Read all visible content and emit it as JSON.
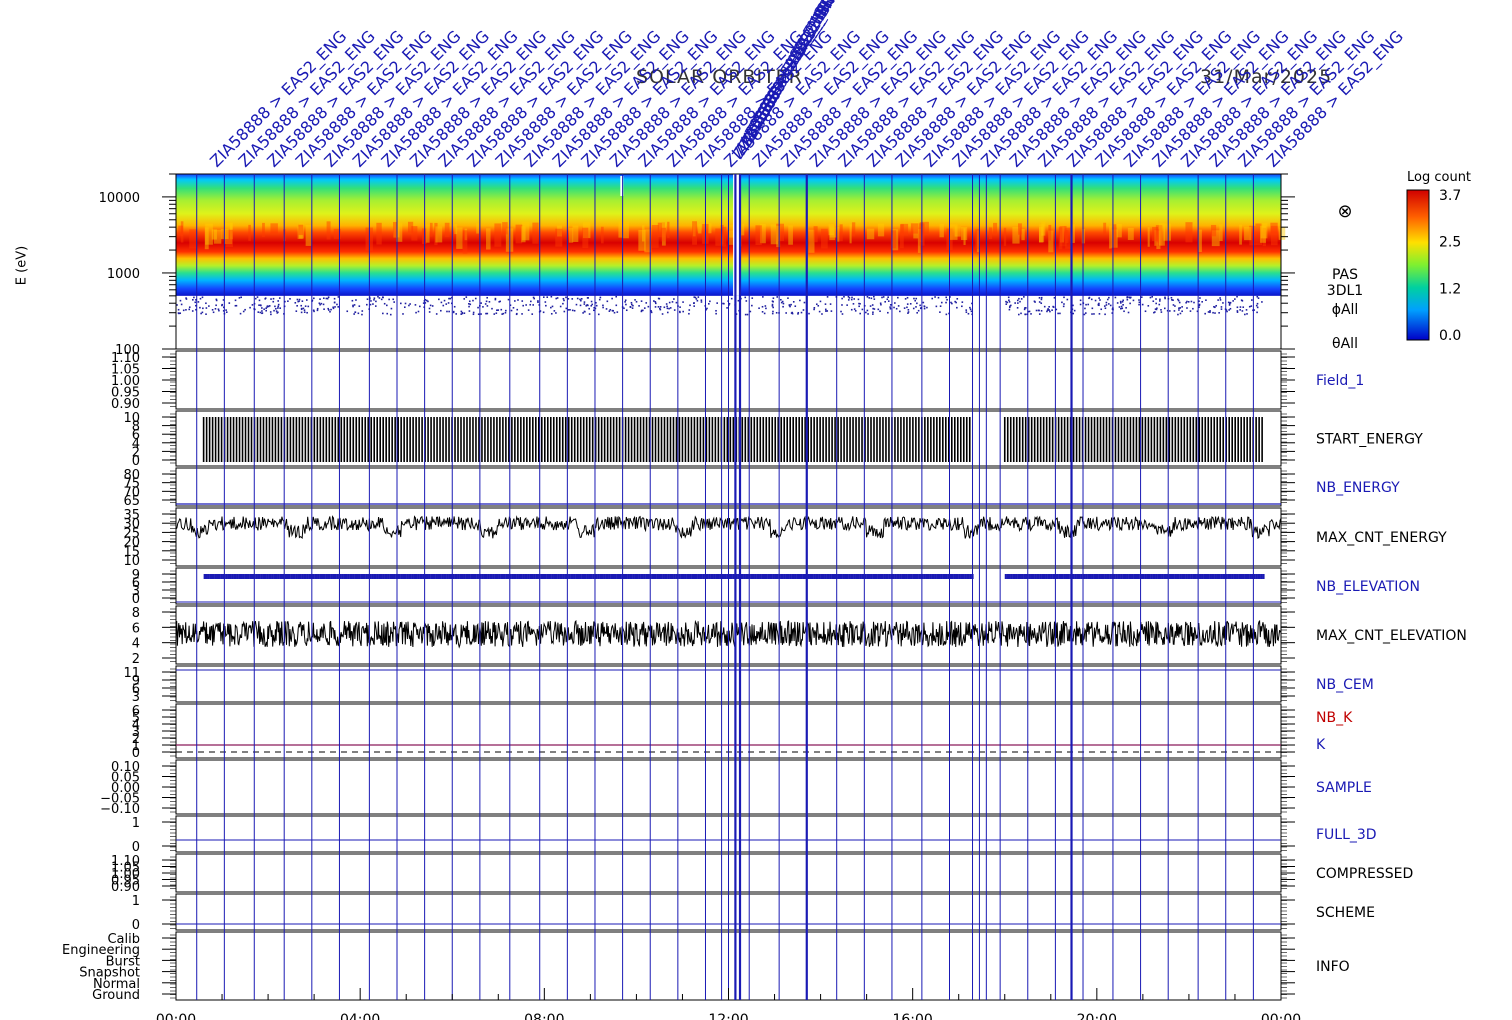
{
  "title": {
    "mission": "SOLAR ORBITER",
    "date": "31/Mar/2025"
  },
  "colors": {
    "annotation_blue": "#1a1ab4",
    "line_black": "#000000",
    "nbk_red": "#c00000",
    "k_line": "#8b1a5a"
  },
  "top_annotation": {
    "label_text": "ZIA58888 > EAS2_ENG",
    "label_count": 38,
    "cluster_near_noon": true
  },
  "colorbar": {
    "title": "Log count",
    "ticks": [
      "3.7",
      "2.5",
      "1.2",
      "0.0"
    ],
    "range": [
      0.0,
      3.7
    ]
  },
  "time_axis": {
    "ticks": [
      "00:00",
      "04:00",
      "08:00",
      "12:00",
      "16:00",
      "20:00",
      "00:00"
    ],
    "hours": [
      0,
      4,
      8,
      12,
      16,
      20,
      24
    ]
  },
  "right_labels": {
    "spectrogram": [
      "PAS",
      "3DL1",
      "ϕAll",
      "θAll"
    ],
    "symbol": "⊗"
  },
  "chart_data": [
    {
      "type": "heatmap",
      "panel": "spectrogram",
      "ylabel": "E (eV)",
      "yticks": [
        "10000",
        "1000",
        "100"
      ],
      "ylim": [
        100,
        20000
      ],
      "y_scale": "log",
      "xlim": [
        0,
        24
      ],
      "peak_energy_eV": 2500,
      "lower_cutoff_eV": 500,
      "gap_hours": [
        12.1,
        12.25
      ]
    },
    {
      "type": "line",
      "name": "Field_1",
      "label_color": "#1a1ab4",
      "yticks": [
        "1.10",
        "1.05",
        "1.00",
        "0.95",
        "0.90"
      ]
    },
    {
      "type": "bar",
      "name": "START_ENERGY",
      "label_color": "#000000",
      "yticks": [
        "10",
        "8",
        "6",
        "4",
        "2",
        "0"
      ],
      "value": 10,
      "active_intervals": [
        [
          0.6,
          17.3
        ],
        [
          18.0,
          23.6
        ]
      ]
    },
    {
      "type": "line",
      "name": "NB_ENERGY",
      "label_color": "#1a1ab4",
      "yticks": [
        "80",
        "75",
        "70",
        "65"
      ],
      "value": 64
    },
    {
      "type": "line",
      "name": "MAX_CNT_ENERGY",
      "label_color": "#000000",
      "yticks": [
        "35",
        "30",
        "25",
        "20",
        "15",
        "10"
      ],
      "mean": 30,
      "noise": 3.5
    },
    {
      "type": "line",
      "name": "NB_ELEVATION",
      "label_color": "#1a1ab4",
      "yticks": [
        "9",
        "6",
        "3",
        "0"
      ],
      "value": 9,
      "active_intervals": [
        [
          0.6,
          17.3
        ],
        [
          18.0,
          23.6
        ]
      ]
    },
    {
      "type": "line",
      "name": "MAX_CNT_ELEVATION",
      "label_color": "#000000",
      "yticks": [
        "8",
        "6",
        "4",
        "2"
      ],
      "range": [
        2,
        6
      ]
    },
    {
      "type": "line",
      "name": "NB_CEM",
      "label_color": "#1a1ab4",
      "yticks": [
        "11",
        "9",
        "6",
        "3"
      ],
      "value": 11
    },
    {
      "type": "line",
      "name": "NB_K",
      "label_color": "#c00000",
      "secondary_name": "K",
      "yticks": [
        "6",
        "5",
        "4",
        "3",
        "2",
        "1",
        "0"
      ],
      "value": 1
    },
    {
      "type": "line",
      "name": "SAMPLE",
      "label_color": "#1a1ab4",
      "yticks": [
        "0.10",
        "0.05",
        "0.00",
        "−0.05",
        "−0.10"
      ]
    },
    {
      "type": "line",
      "name": "FULL_3D",
      "label_color": "#1a1ab4",
      "yticks": [
        "1",
        "0"
      ],
      "value": 0
    },
    {
      "type": "line",
      "name": "COMPRESSED",
      "label_color": "#000000",
      "yticks": [
        "1.10",
        "1.05",
        "1.00",
        "0.95",
        "0.90"
      ]
    },
    {
      "type": "line",
      "name": "SCHEME",
      "label_color": "#000000",
      "yticks": [
        "1",
        "0"
      ],
      "value": 0
    },
    {
      "type": "line",
      "name": "INFO",
      "label_color": "#000000",
      "yticks": [
        "Calib",
        "Engineering",
        "Burst",
        "Snapshot",
        "Normal",
        "Ground"
      ]
    }
  ]
}
